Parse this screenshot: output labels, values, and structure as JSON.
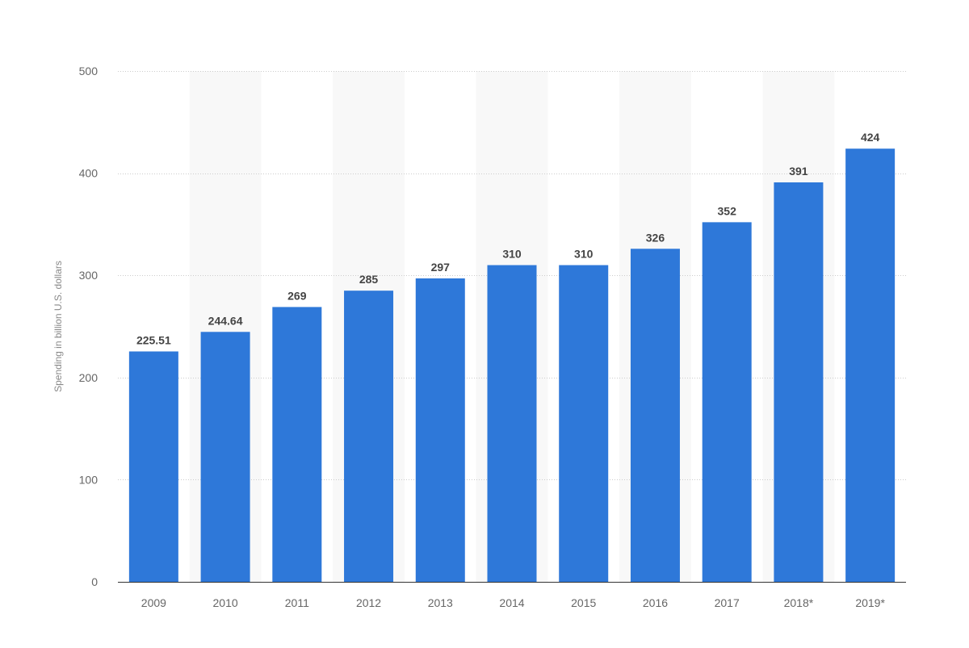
{
  "chart_data": {
    "type": "bar",
    "title": "",
    "xlabel": "",
    "ylabel": "Spending in billion U.S. dollars",
    "categories": [
      "2009",
      "2010",
      "2011",
      "2012",
      "2013",
      "2014",
      "2015",
      "2016",
      "2017",
      "2018*",
      "2019*"
    ],
    "values": [
      225.51,
      244.64,
      269,
      285,
      297,
      310,
      310,
      326,
      352,
      391,
      424
    ],
    "value_labels": [
      "225.51",
      "244.64",
      "269",
      "285",
      "297",
      "310",
      "310",
      "326",
      "352",
      "391",
      "424"
    ],
    "ylim": [
      0,
      500
    ],
    "yticks": [
      0,
      100,
      200,
      300,
      400,
      500
    ],
    "ytick_labels": [
      "0",
      "100",
      "200",
      "300",
      "400",
      "500"
    ],
    "grid": true,
    "grid_style": "dotted",
    "alternating_band_fill": true,
    "legend": "none",
    "colors": {
      "bar": "#2e78d9",
      "band": "#f8f8f8",
      "grid": "#cccccc",
      "axis": "#333333",
      "tick_text": "#666666",
      "value_text": "#444444",
      "axis_title_text": "#888888"
    }
  }
}
